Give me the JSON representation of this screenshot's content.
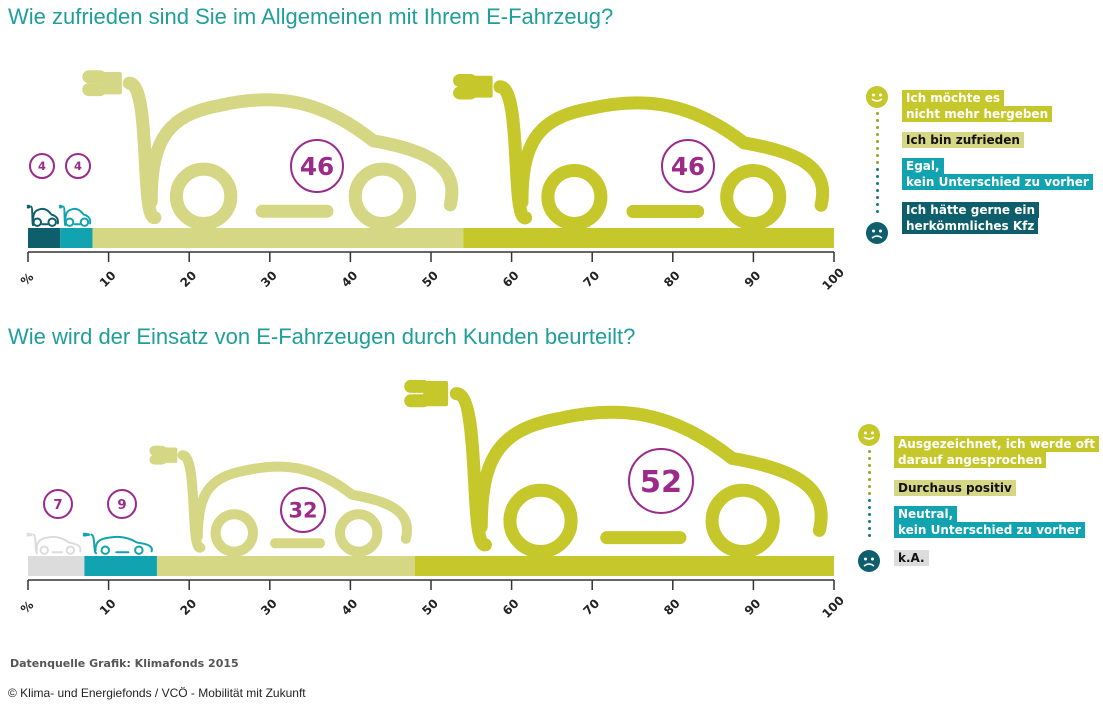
{
  "chart_data": [
    {
      "type": "bar",
      "title": "Wie zufrieden sind Sie im Allgemeinen mit Ihrem E-Fahrzeug?",
      "stacked": true,
      "xlim": [
        0,
        100
      ],
      "ticks": [
        "%",
        "10",
        "20",
        "30",
        "40",
        "50",
        "60",
        "70",
        "80",
        "90",
        "100"
      ],
      "series": [
        {
          "name": "Ich hätte gerne ein herkömmliches Kfz",
          "value": 4,
          "color": "#0f5e6c",
          "label": "4"
        },
        {
          "name": "Egal, kein Unterschied zu vorher",
          "value": 4,
          "color": "#12a3b0",
          "label": "4"
        },
        {
          "name": "Ich bin zufrieden",
          "value": 46,
          "color": "#d6d784",
          "label": "46"
        },
        {
          "name": "Ich möchte es nicht mehr hergeben",
          "value": 46,
          "color": "#c5c72a",
          "label": "46"
        }
      ],
      "legend": [
        {
          "lines": [
            "Ich möchte es",
            "nicht mehr hergeben"
          ],
          "color": "#c5c72a"
        },
        {
          "lines": [
            "Ich bin zufrieden"
          ],
          "color": "#d6d784"
        },
        {
          "lines": [
            "Egal,",
            "kein Unterschied zu vorher"
          ],
          "color": "#12a3b0"
        },
        {
          "lines": [
            "Ich hätte gerne ein",
            "herkömmliches Kfz"
          ],
          "color": "#0f5e6c"
        }
      ]
    },
    {
      "type": "bar",
      "title": "Wie wird der Einsatz von E-Fahrzeugen durch Kunden beurteilt?",
      "stacked": true,
      "xlim": [
        0,
        100
      ],
      "ticks": [
        "%",
        "10",
        "20",
        "30",
        "40",
        "50",
        "60",
        "70",
        "80",
        "90",
        "100"
      ],
      "series": [
        {
          "name": "k.A.",
          "value": 7,
          "color": "#dcdcdc",
          "label": "7"
        },
        {
          "name": "Neutral, kein Unterschied zu vorher",
          "value": 9,
          "color": "#12a3b0",
          "label": "9"
        },
        {
          "name": "Durchaus positiv",
          "value": 32,
          "color": "#d6d784",
          "label": "32"
        },
        {
          "name": "Ausgezeichnet, ich werde oft darauf angesprochen",
          "value": 52,
          "color": "#c5c72a",
          "label": "52"
        }
      ],
      "legend": [
        {
          "lines": [
            "Ausgezeichnet, ich werde oft",
            "darauf angesprochen"
          ],
          "color": "#c5c72a"
        },
        {
          "lines": [
            "Durchaus positiv"
          ],
          "color": "#d6d784"
        },
        {
          "lines": [
            "Neutral,",
            "kein Unterschied zu vorher"
          ],
          "color": "#12a3b0"
        },
        {
          "lines": [
            "k.A."
          ],
          "color": "#dcdcdc"
        }
      ]
    }
  ],
  "footer": {
    "source": "Datenquelle Grafik:  Klimafonds 2015",
    "copyright": "© Klima- und Energiefonds / VCÖ - Mobilität mit Zukunft"
  },
  "colors": {
    "title": "#1f9e9a",
    "label_ring": "#9b2a8a",
    "axis": "#333333"
  }
}
